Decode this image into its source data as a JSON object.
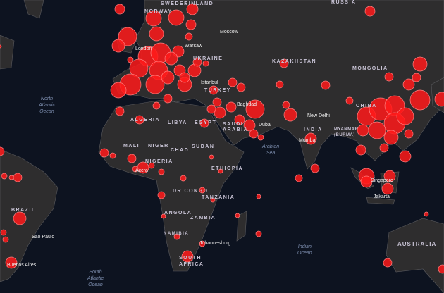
{
  "colors": {
    "ocean": "#0d1320",
    "land": "#2e2d2e",
    "border": "#5a5a5e",
    "bubble": "#ff1a1a",
    "bubble_stroke": "#ff8080"
  },
  "countries": [
    "RUSSIA",
    "NORWAY",
    "SWEDEN",
    "FINLAND",
    "UKRAINE",
    "KAZAKHSTAN",
    "MONGOLIA",
    "TURKEY",
    "ALGERIA",
    "LIBYA",
    "EGYPT",
    "SAUDI ARABIA",
    "INDIA",
    "MYANMAR (BURMA)",
    "CHINA",
    "MALI",
    "NIGER",
    "CHAD",
    "SUDAN",
    "NIGERIA",
    "ETHIOPIA",
    "DR CONGO",
    "TANZANIA",
    "ANGOLA",
    "ZAMBIA",
    "NAMIBIA",
    "SOUTH AFRICA",
    "BRAZIL",
    "AUSTRALIA"
  ],
  "cities": [
    "Moscow",
    "Warsaw",
    "Istanbul",
    "Baghdad",
    "Dubai",
    "New Delhi",
    "Mumbai",
    "Accra",
    "Singapore",
    "Jakarta",
    "Johannesburg",
    "Sao Paulo",
    "Buenos Aires",
    "London"
  ],
  "oceans": [
    "North\nAtlantic\nOcean",
    "Arabian\nSea",
    "Indian\nOcean",
    "South\nAtlantic\nOcean"
  ]
}
